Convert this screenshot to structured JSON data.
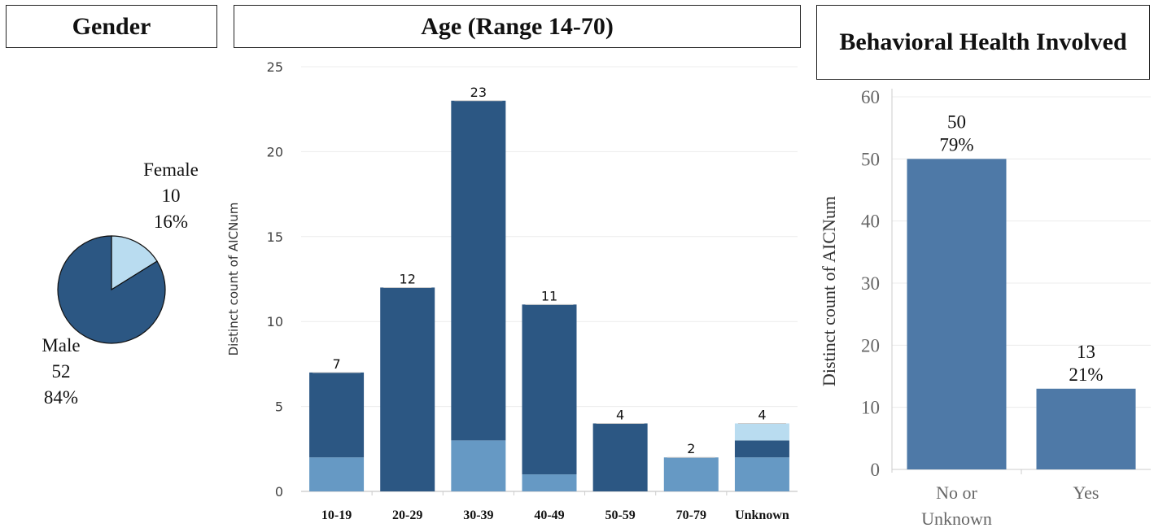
{
  "titles": {
    "gender": "Gender",
    "age": "Age (Range 14-70)",
    "behavioral": "Behavioral Health Involved"
  },
  "chart_data": [
    {
      "type": "pie",
      "title": "Gender",
      "slices": [
        {
          "label": "Female",
          "value": 10,
          "percent": "16%",
          "color": "#b9dcf0"
        },
        {
          "label": "Male",
          "value": 52,
          "percent": "84%",
          "color": "#2c5783"
        }
      ]
    },
    {
      "type": "bar",
      "stacked": true,
      "title": "Age (Range 14-70)",
      "ylabel": "Distinct count of AICNum",
      "ylim": [
        0,
        25
      ],
      "yticks": [
        0,
        5,
        10,
        15,
        20,
        25
      ],
      "categories": [
        "10-19",
        "20-29",
        "30-39",
        "40-49",
        "50-59",
        "70-79",
        "Unknown"
      ],
      "totals": [
        7,
        12,
        23,
        11,
        4,
        2,
        4
      ],
      "series": [
        {
          "color": "#6699c4",
          "values": [
            2,
            0,
            3,
            1,
            0,
            2,
            2
          ]
        },
        {
          "color": "#2c5783",
          "values": [
            5,
            12,
            20,
            10,
            4,
            0,
            1
          ]
        },
        {
          "color": "#b9dcf0",
          "values": [
            0,
            0,
            0,
            0,
            0,
            0,
            1
          ]
        }
      ],
      "grid": true
    },
    {
      "type": "bar",
      "title": "Behavioral Health Involved",
      "ylabel": "Distinct count of AICNum",
      "ylim": [
        0,
        60
      ],
      "yticks": [
        0,
        10,
        20,
        30,
        40,
        50,
        60
      ],
      "categories": [
        "No or Unknown",
        "Yes"
      ],
      "category_lines": [
        [
          "No or",
          "Unknown"
        ],
        [
          "Yes"
        ]
      ],
      "values": [
        50,
        13
      ],
      "percents": [
        "79%",
        "21%"
      ],
      "color": "#4e79a7",
      "grid": true
    }
  ]
}
